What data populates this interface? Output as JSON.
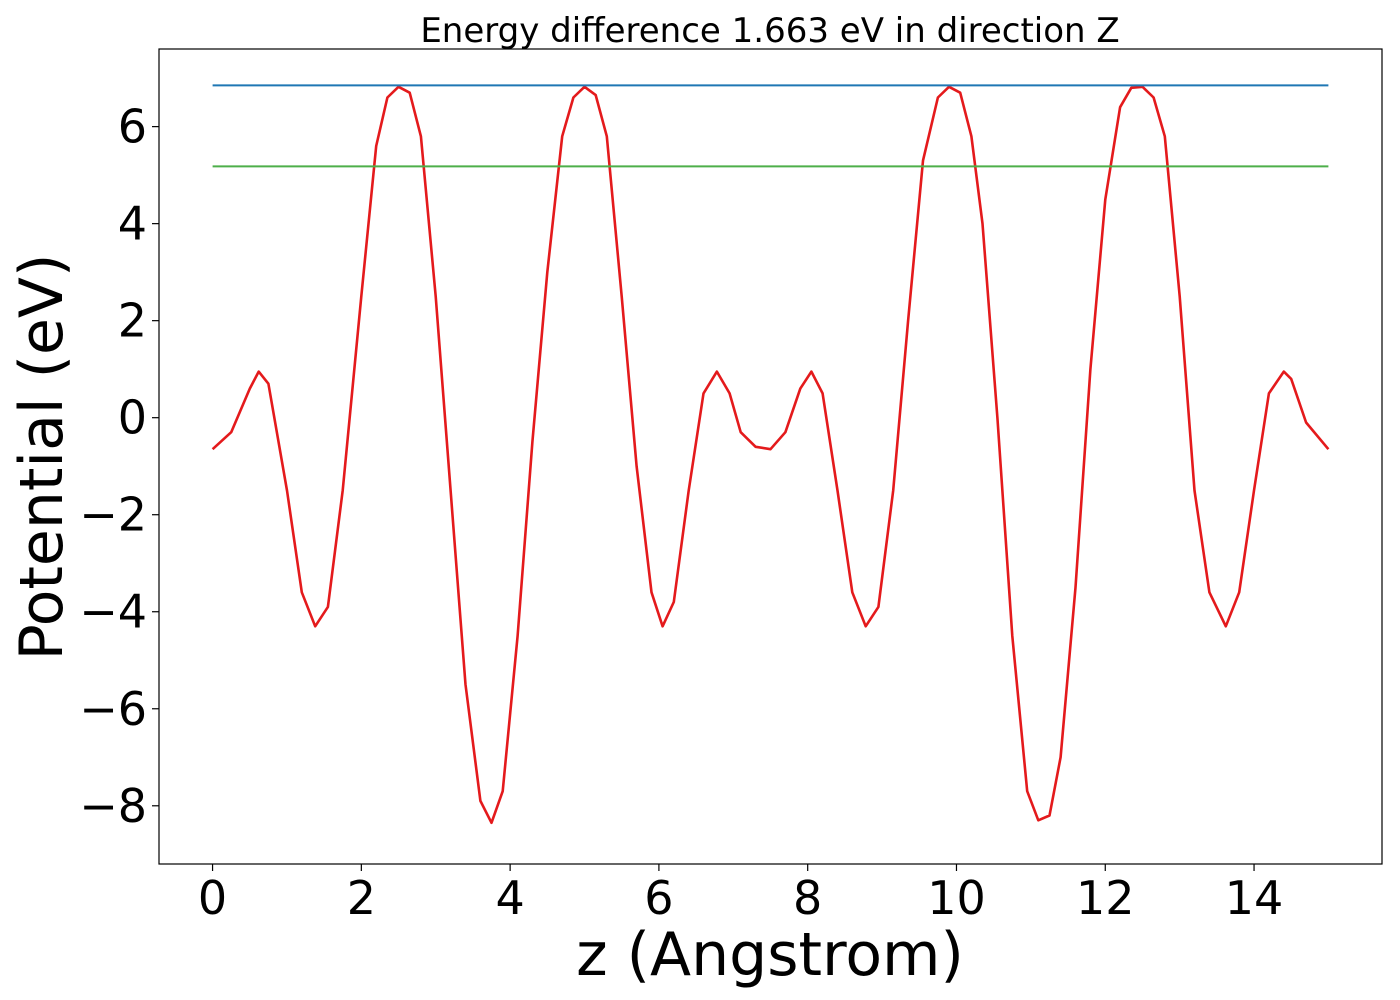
{
  "chart_data": {
    "type": "line",
    "title": "Energy difference 1.663 eV in direction Z",
    "xlabel": "z (Angstrom)",
    "ylabel": "Potential (eV)",
    "xlim": [
      -0.72,
      15.72
    ],
    "ylim": [
      -9.2,
      7.6
    ],
    "xticks": [
      0,
      2,
      4,
      6,
      8,
      10,
      12,
      14
    ],
    "yticks": [
      -8,
      -6,
      -4,
      -2,
      0,
      2,
      4,
      6
    ],
    "xtick_labels": [
      "0",
      "2",
      "4",
      "6",
      "8",
      "10",
      "12",
      "14"
    ],
    "ytick_labels": [
      "−8",
      "−6",
      "−4",
      "−2",
      "0",
      "2",
      "4",
      "6"
    ],
    "grid": false,
    "series": [
      {
        "color": "#e41a1c",
        "x": [
          0.0,
          0.25,
          0.5,
          0.62,
          0.75,
          1.0,
          1.2,
          1.38,
          1.55,
          1.75,
          2.0,
          2.2,
          2.35,
          2.5,
          2.65,
          2.8,
          3.0,
          3.2,
          3.4,
          3.6,
          3.75,
          3.9,
          4.1,
          4.3,
          4.5,
          4.7,
          4.85,
          5.0,
          5.15,
          5.3,
          5.5,
          5.7,
          5.9,
          6.05,
          6.2,
          6.4,
          6.6,
          6.78,
          6.95,
          7.1,
          7.3,
          7.5,
          7.7,
          7.9,
          8.05,
          8.2,
          8.4,
          8.6,
          8.78,
          8.95,
          9.15,
          9.35,
          9.55,
          9.75,
          9.9,
          10.05,
          10.2,
          10.35,
          10.55,
          10.75,
          10.95,
          11.1,
          11.25,
          11.4,
          11.6,
          11.8,
          12.0,
          12.2,
          12.35,
          12.5,
          12.65,
          12.8,
          13.0,
          13.2,
          13.4,
          13.62,
          13.8,
          14.0,
          14.2,
          14.4,
          14.5,
          14.7,
          15.0
        ],
        "y": [
          -0.65,
          -0.3,
          0.6,
          0.95,
          0.7,
          -1.5,
          -3.6,
          -4.3,
          -3.9,
          -1.5,
          2.5,
          5.6,
          6.6,
          6.82,
          6.7,
          5.8,
          2.5,
          -1.5,
          -5.5,
          -7.9,
          -8.35,
          -7.7,
          -4.5,
          -0.5,
          3.0,
          5.8,
          6.6,
          6.82,
          6.65,
          5.8,
          2.5,
          -1.0,
          -3.6,
          -4.3,
          -3.8,
          -1.5,
          0.5,
          0.95,
          0.5,
          -0.3,
          -0.6,
          -0.65,
          -0.3,
          0.6,
          0.95,
          0.5,
          -1.5,
          -3.6,
          -4.3,
          -3.9,
          -1.5,
          2.0,
          5.3,
          6.6,
          6.82,
          6.7,
          5.8,
          4.0,
          0.0,
          -4.5,
          -7.7,
          -8.3,
          -8.2,
          -7.0,
          -3.5,
          1.0,
          4.5,
          6.4,
          6.8,
          6.82,
          6.6,
          5.8,
          2.5,
          -1.5,
          -3.6,
          -4.3,
          -3.6,
          -1.5,
          0.5,
          0.95,
          0.8,
          -0.1,
          -0.65
        ]
      },
      {
        "color": "#1f77b4",
        "x": [
          0,
          15
        ],
        "y": [
          6.85,
          6.85
        ]
      },
      {
        "color": "#4daf4a",
        "x": [
          0,
          15
        ],
        "y": [
          5.18,
          5.18
        ]
      }
    ]
  }
}
